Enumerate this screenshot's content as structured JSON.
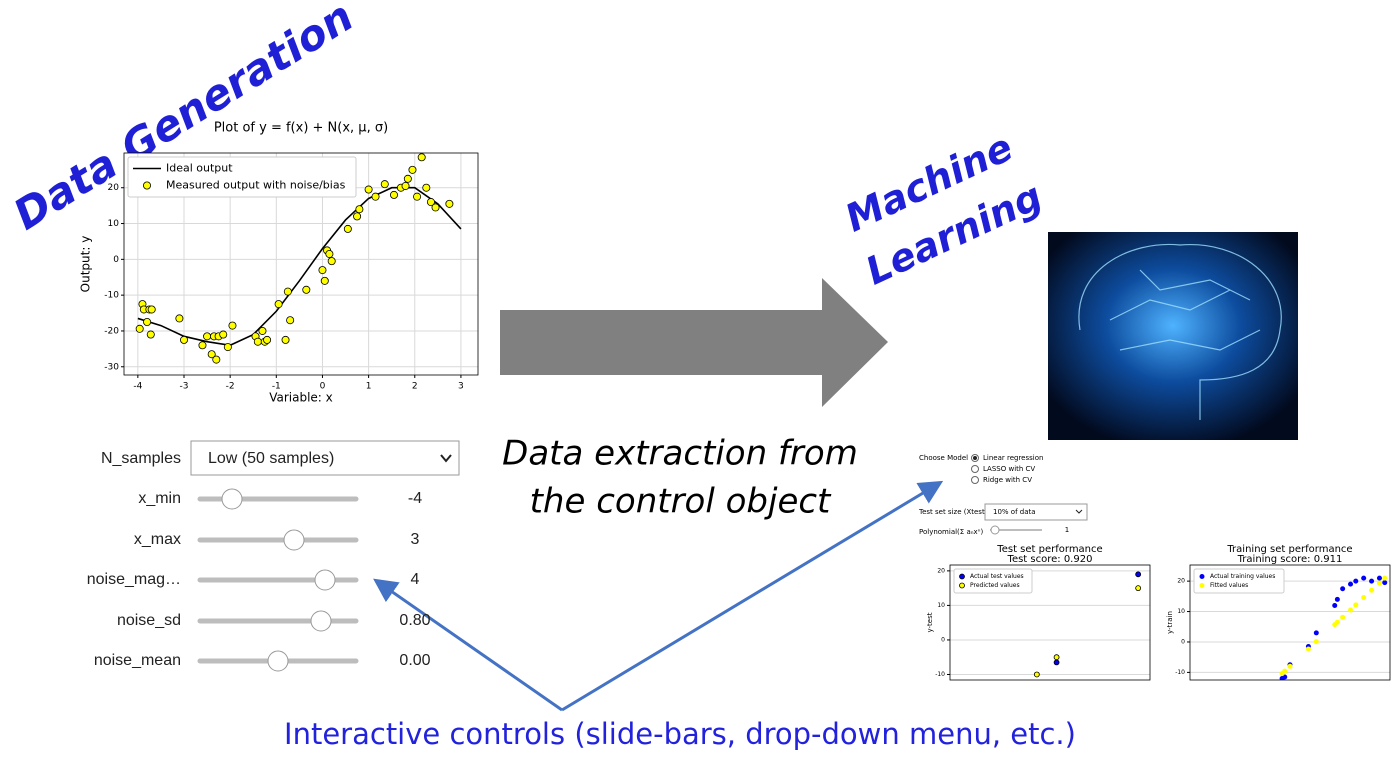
{
  "headings": {
    "data_generation": "Data Generation",
    "machine": "Machine",
    "learning": "Learning",
    "extraction": [
      "Data extraction from",
      "the control object"
    ],
    "interactive": "Interactive controls (slide-bars, drop-down menu, etc.)"
  },
  "main_plot": {
    "type": "scatter",
    "title": "Plot of y = f(x) + N(x, μ, σ)",
    "xlabel": "Variable: x",
    "ylabel": "Output: y",
    "xlim": [
      -4.3,
      3.37
    ],
    "ylim": [
      -32.3,
      29.7
    ],
    "xticks": [
      -4,
      -3,
      -2,
      -1,
      0,
      1,
      2,
      3
    ],
    "yticks": [
      -30,
      -20,
      -10,
      0,
      10,
      20
    ],
    "grid": true,
    "legend": "upper left",
    "series": [
      {
        "name": "Ideal output",
        "type": "line",
        "color": "#000000",
        "x": [
          -4,
          -3.5,
          -3,
          -2.5,
          -2,
          -1.5,
          -1,
          -0.5,
          0,
          0.5,
          1,
          1.5,
          2,
          2.5,
          3
        ],
        "values": [
          -16.5,
          -18.5,
          -21.5,
          -23,
          -24,
          -21,
          -14.5,
          -6,
          3,
          11,
          17,
          20,
          20,
          15.5,
          8.5
        ]
      },
      {
        "name": "Measured output with noise/bias",
        "type": "scatter",
        "color": "#ffff00",
        "x": [
          -3.96,
          -3.9,
          -3.87,
          -3.8,
          -3.75,
          -3.72,
          -3.7,
          -3.1,
          -3.0,
          -2.6,
          -2.5,
          -2.4,
          -2.35,
          -2.3,
          -2.25,
          -2.15,
          -2.05,
          -1.95,
          -1.45,
          -1.4,
          -1.3,
          -1.25,
          -1.2,
          -0.95,
          -0.8,
          -0.75,
          -0.7,
          -0.35,
          0.0,
          0.05,
          0.1,
          0.15,
          0.2,
          0.55,
          0.75,
          0.8,
          1.0,
          1.15,
          1.35,
          1.55,
          1.7,
          1.8,
          1.85,
          1.95,
          2.05,
          2.15,
          2.25,
          2.35,
          2.45,
          2.75
        ],
        "values": [
          -19.4,
          -12.5,
          -14,
          -17.5,
          -14,
          -21,
          -14,
          -16.5,
          -22.5,
          -24,
          -21.5,
          -26.5,
          -21.5,
          -28,
          -21.5,
          -21,
          -24.5,
          -18.5,
          -21.5,
          -23,
          -20,
          -23,
          -22.5,
          -12.5,
          -22.5,
          -9,
          -17,
          -8.5,
          -3,
          -6,
          2.5,
          1.5,
          -0.5,
          8.5,
          12,
          14,
          19.5,
          17.5,
          21,
          18,
          20,
          20.5,
          22.5,
          25,
          17.5,
          28.5,
          20,
          16,
          14.5,
          15.5
        ]
      }
    ]
  },
  "controls": {
    "n_samples": {
      "label": "N_samples",
      "value": "Low (50 samples)"
    },
    "sliders": [
      {
        "label": "x_min",
        "value": "-4"
      },
      {
        "label": "x_max",
        "value": "3"
      },
      {
        "label": "noise_mag…",
        "value": "4"
      },
      {
        "label": "noise_sd",
        "value": "0.80"
      },
      {
        "label": "noise_mean",
        "value": "0.00"
      }
    ]
  },
  "ml_panel": {
    "choose_model": "Choose Model",
    "models": [
      "Linear regression",
      "LASSO with CV",
      "Ridge with CV"
    ],
    "test_size_label": "Test set size (Xtest)",
    "test_size": "10% of data",
    "polynomial_label": "Polynomial(Σ aₙxⁿ)",
    "polynomial": "1",
    "charts": [
      {
        "type": "scatter",
        "title": "Test set performance",
        "subtitle": "Test score: 0.920",
        "ylabel": "y-test",
        "xlim": [
          -4.3,
          3.3
        ],
        "ylim": [
          -11.6,
          21.7
        ],
        "yticks": [
          -10,
          0,
          10,
          20
        ],
        "grid": true,
        "legend": "upper left",
        "series": [
          {
            "name": "Actual test values",
            "type": "scatter",
            "color": "#0000ff",
            "x": [
              -0.25,
              2.85
            ],
            "values": [
              -6.5,
              19
            ]
          },
          {
            "name": "Predicted values",
            "type": "scatter",
            "color": "#ffff00",
            "x": [
              -1.0,
              -0.25,
              2.85
            ],
            "values": [
              -10,
              -5,
              15
            ]
          }
        ]
      },
      {
        "type": "scatter",
        "title": "Training set performance",
        "subtitle": "Training score: 0.911",
        "ylabel": "y-train",
        "xlim": [
          -4.3,
          3.3
        ],
        "ylim": [
          -12.5,
          25.3
        ],
        "yticks": [
          -10,
          0,
          10,
          20
        ],
        "grid": true,
        "legend": "upper left",
        "series": [
          {
            "name": "Actual training values",
            "type": "scatter",
            "color": "#0000ff",
            "x": [
              -0.8,
              -0.7,
              -0.5,
              0.2,
              0.5,
              1.2,
              1.3,
              1.5,
              1.8,
              2.0,
              2.3,
              2.6,
              2.9,
              3.1
            ],
            "values": [
              -12,
              -11.5,
              -7.5,
              -1.5,
              3,
              12,
              14,
              17.5,
              19,
              20,
              21,
              20,
              21,
              19.5
            ]
          },
          {
            "name": "Fitted values",
            "type": "scatter",
            "color": "#ffff00",
            "x": [
              -0.8,
              -0.7,
              -0.5,
              0.2,
              0.5,
              1.2,
              1.3,
              1.5,
              1.8,
              2.0,
              2.3,
              2.6,
              2.9,
              3.1
            ],
            "values": [
              -10.4,
              -9.6,
              -8,
              -2.3,
              0.1,
              5.7,
              6.5,
              8.1,
              10.5,
              12.2,
              14.6,
              17,
              19.4,
              21
            ]
          }
        ]
      }
    ]
  }
}
